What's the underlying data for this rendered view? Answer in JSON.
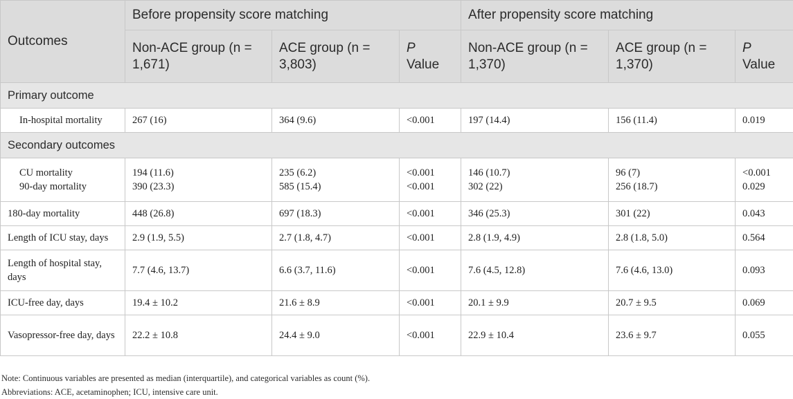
{
  "header": {
    "outcomes": "Outcomes",
    "before": "Before propensity score matching",
    "after": "After propensity score matching",
    "before_cols": {
      "non_ace": "Non-ACE group (n = 1,671)",
      "ace": "ACE group (n = 3,803)",
      "p_italic": "P",
      "p_value": "Value"
    },
    "after_cols": {
      "non_ace": "Non-ACE group (n = 1,370)",
      "ace": "ACE group (n = 1,370)",
      "p_italic": "P",
      "p_value": "Value"
    }
  },
  "sections": {
    "primary": "Primary outcome",
    "secondary": "Secondary outcomes"
  },
  "rows": {
    "in_hospital": [
      "In-hospital mortality",
      "267 (16)",
      "364 (9.6)",
      "<0.001",
      "197 (14.4)",
      "156 (11.4)",
      "0.019"
    ],
    "cu": [
      "CU mortality",
      "194 (11.6)",
      "235 (6.2)",
      "<0.001",
      "146 (10.7)",
      "96 (7)",
      "<0.001"
    ],
    "d90": [
      "90-day mortality",
      "390 (23.3)",
      "585 (15.4)",
      "<0.001",
      "302 (22)",
      "256 (18.7)",
      "0.029"
    ],
    "d180": [
      "180-day mortality",
      "448 (26.8)",
      "697 (18.3)",
      "<0.001",
      "346 (25.3)",
      "301 (22)",
      "0.043"
    ],
    "icu_stay": [
      "Length of ICU stay, days",
      "2.9 (1.9, 5.5)",
      "2.7 (1.8, 4.7)",
      "<0.001",
      "2.8 (1.9, 4.9)",
      "2.8 (1.8, 5.0)",
      "0.564"
    ],
    "hosp_stay": [
      "Length of hospital stay, days",
      "7.7 (4.6, 13.7)",
      "6.6 (3.7, 11.6)",
      "<0.001",
      "7.6 (4.5, 12.8)",
      "7.6 (4.6, 13.0)",
      "0.093"
    ],
    "icu_free": [
      "ICU-free day, days",
      "19.4 ± 10.2",
      "21.6 ± 8.9",
      "<0.001",
      "20.1 ± 9.9",
      "20.7 ± 9.5",
      "0.069"
    ],
    "vaso_free": [
      "Vasopressor-free day, days",
      "22.2 ± 10.8",
      "24.4 ± 9.0",
      "<0.001",
      "22.9 ± 10.4",
      "23.6 ± 9.7",
      "0.055"
    ]
  },
  "notes": {
    "note": "Note: Continuous variables are presented as median (interquartile), and categorical variables as count (%).",
    "abbreviations": "Abbreviations: ACE, acetaminophen; ICU, intensive care unit."
  }
}
